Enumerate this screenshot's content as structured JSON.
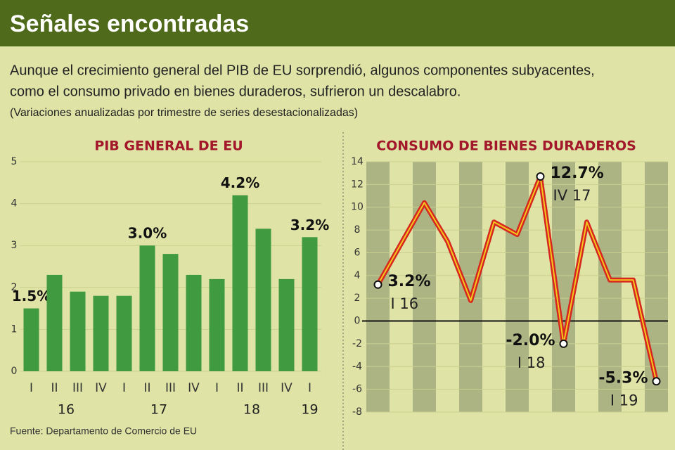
{
  "header": {
    "title": "Señales encontradas",
    "lead": [
      "Aunque el crecimiento general del PIB de EU sorprendió, algunos componentes subyacentes,",
      "como el consumo privado en bienes duraderos, sufrieron un descalabro."
    ],
    "note": "(Variaciones anualizadas por trimestre de series desestacionalizadas)"
  },
  "source": "Fuente: Departamento de Comercio de EU",
  "chart_data": [
    {
      "type": "bar",
      "title": "PIB GENERAL DE EU",
      "categories": [
        "I",
        "II",
        "III",
        "IV",
        "I",
        "II",
        "III",
        "IV",
        "I",
        "II",
        "III",
        "IV",
        "I"
      ],
      "groups": [
        "16",
        "17",
        "18",
        "19"
      ],
      "values": [
        1.5,
        2.3,
        1.9,
        1.8,
        1.8,
        3.0,
        2.8,
        2.3,
        2.2,
        4.2,
        3.4,
        2.2,
        3.2
      ],
      "value_labels": [
        "1.5%",
        null,
        null,
        null,
        null,
        "3.0%",
        null,
        null,
        null,
        "4.2%",
        null,
        null,
        "3.2%"
      ],
      "color": "#3f9a40",
      "ylim": [
        0,
        5
      ],
      "yticks": [
        0,
        1,
        2,
        3,
        4,
        5
      ],
      "grid": true
    },
    {
      "type": "line",
      "title": "CONSUMO DE BIENES DURADEROS",
      "categories": [
        "I 16",
        null,
        null,
        null,
        null,
        null,
        null,
        "IV 17",
        "I 18",
        null,
        null,
        null,
        "I 19"
      ],
      "values": [
        3.2,
        6.8,
        10.4,
        7.0,
        1.8,
        8.7,
        7.6,
        12.7,
        -2.0,
        8.7,
        3.6,
        3.6,
        -5.3
      ],
      "value_labels": [
        "3.2%",
        null,
        null,
        null,
        null,
        null,
        null,
        "12.7%",
        "-2.0%",
        null,
        null,
        null,
        "-5.3%"
      ],
      "color": "#d7261e",
      "ylim": [
        -8,
        14
      ],
      "yticks": [
        -8,
        -6,
        -4,
        -2,
        0,
        2,
        4,
        6,
        8,
        10,
        12,
        14
      ],
      "grid": true
    }
  ]
}
